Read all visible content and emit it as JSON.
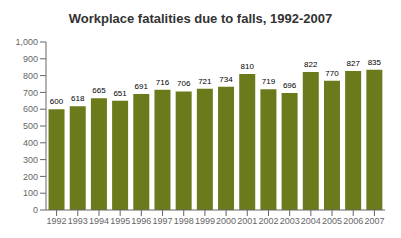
{
  "chart_data": {
    "type": "bar",
    "title": "Workplace fatalities due to falls, 1992-2007",
    "categories": [
      "1992",
      "1993",
      "1994",
      "1995",
      "1996",
      "1997",
      "1998",
      "1999",
      "2000",
      "2001",
      "2002",
      "2003",
      "2004",
      "2005",
      "2006",
      "2007"
    ],
    "values": [
      600,
      618,
      665,
      651,
      691,
      716,
      706,
      721,
      734,
      810,
      719,
      696,
      822,
      770,
      827,
      835
    ],
    "color": "#6b7a1a",
    "ylim": [
      0,
      1000
    ],
    "yticks": [
      0,
      100,
      200,
      300,
      400,
      500,
      600,
      700,
      800,
      900,
      {
        "value": 1000,
        "label": "1,000"
      }
    ],
    "grid": false,
    "data_labels": true
  }
}
